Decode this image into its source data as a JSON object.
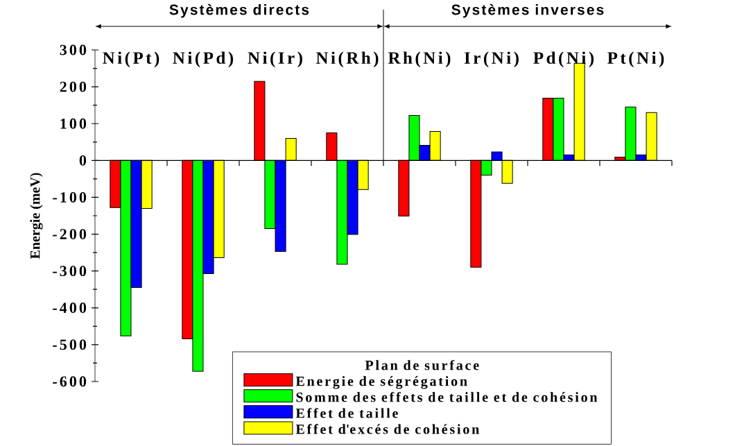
{
  "chart_data": {
    "type": "bar",
    "ylabel": "Energie (meV)",
    "legend_title": "Plan de surface",
    "categories": [
      "Ni(Pt)",
      "Ni(Pd)",
      "Ni(Ir)",
      "Ni(Rh)",
      "Rh(Ni)",
      "Ir(Ni)",
      "Pd(Ni)",
      "Pt(Ni)"
    ],
    "series": [
      {
        "name": "Energie de ségrégation",
        "color": "#ff0000",
        "values": [
          -128,
          -484,
          215,
          75,
          -151,
          -290,
          169,
          9
        ]
      },
      {
        "name": "Somme des effets de taille et de cohésion",
        "color": "#00ff00",
        "values": [
          -476,
          -572,
          -185,
          -282,
          122,
          -40,
          169,
          145
        ]
      },
      {
        "name": "Effet de taille",
        "color": "#0000ff",
        "values": [
          -345,
          -307,
          -247,
          -201,
          41,
          23,
          15,
          15
        ]
      },
      {
        "name": "Effet d'excés de cohésion",
        "color": "#ffff00",
        "values": [
          -130,
          -264,
          60,
          -79,
          79,
          -62,
          264,
          130
        ]
      }
    ],
    "ylim": [
      -600,
      300
    ],
    "yticks": [
      -600,
      -500,
      -400,
      -300,
      -200,
      -100,
      0,
      100,
      200,
      300
    ],
    "annotations": [
      "Systèmes directs",
      "Systèmes inverses"
    ],
    "legend": "bottom right"
  }
}
